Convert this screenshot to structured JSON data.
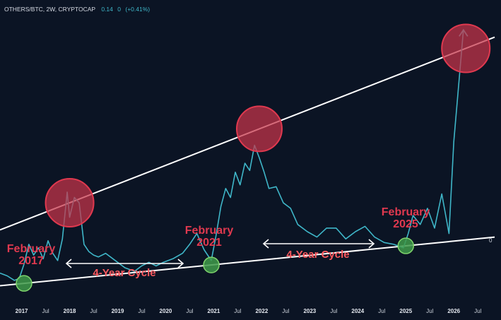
{
  "header": {
    "symbol": "OTHERS/BTC, 2W, CRYPTOCAP",
    "last_value": "0.14",
    "change": "0",
    "change_pct": "(+0.41%)"
  },
  "y_axis_label": "0",
  "colors": {
    "background": "#0b1424",
    "price_line": "#3fb6c8",
    "trendlines": "#ffffff",
    "top_markers": "#c8354a",
    "bottom_markers": "#3f9a4a",
    "callout_text": "#e0394f"
  },
  "callouts": [
    {
      "line1": "February",
      "line2": "2017"
    },
    {
      "line1": "February",
      "line2": "2021"
    },
    {
      "line1": "February",
      "line2": "2025"
    }
  ],
  "cycle_labels": [
    "4-Year Cycle",
    "4-Year Cycle"
  ],
  "chart_data": {
    "type": "line",
    "title": "OTHERS/BTC, 2W, CRYPTOCAP",
    "x_ticks": [
      "2017",
      "Jul",
      "2018",
      "Jul",
      "2019",
      "Jul",
      "2020",
      "Jul",
      "2021",
      "Jul",
      "2022",
      "Jul",
      "2023",
      "Jul",
      "2024",
      "Jul",
      "2025",
      "Jul",
      "2026",
      "Jul"
    ],
    "series": [
      {
        "name": "OTHERS/BTC",
        "x": [
          2016.6,
          2016.75,
          2016.9,
          2017.0,
          2017.1,
          2017.2,
          2017.3,
          2017.4,
          2017.5,
          2017.6,
          2017.7,
          2017.8,
          2017.9,
          2018.0,
          2018.05,
          2018.15,
          2018.25,
          2018.35,
          2018.45,
          2018.55,
          2018.65,
          2018.8,
          2019.0,
          2019.2,
          2019.4,
          2019.55,
          2019.7,
          2019.85,
          2020.0,
          2020.2,
          2020.4,
          2020.55,
          2020.7,
          2020.85,
          2021.0,
          2021.1,
          2021.2,
          2021.3,
          2021.4,
          2021.5,
          2021.6,
          2021.7,
          2021.8,
          2021.9,
          2022.0,
          2022.1,
          2022.2,
          2022.35,
          2022.5,
          2022.65,
          2022.8,
          2023.0,
          2023.2,
          2023.4,
          2023.6,
          2023.8,
          2024.0,
          2024.2,
          2024.4,
          2024.6,
          2024.8,
          2025.0,
          2025.1,
          2025.2,
          2025.35,
          2025.5,
          2025.65,
          2025.8,
          2025.95,
          2026.05,
          2026.25
        ],
        "values": [
          0.7,
          0.55,
          0.3,
          0.4,
          1.2,
          2.3,
          1.7,
          2.1,
          1.5,
          2.5,
          1.8,
          1.4,
          2.6,
          5.2,
          3.8,
          4.9,
          4.6,
          2.3,
          1.9,
          1.7,
          1.6,
          1.8,
          1.4,
          1.0,
          0.8,
          1.1,
          1.3,
          1.1,
          1.3,
          1.5,
          1.8,
          2.3,
          2.9,
          2.0,
          1.4,
          2.8,
          4.4,
          5.4,
          4.9,
          6.3,
          5.6,
          6.8,
          6.4,
          7.8,
          7.1,
          6.3,
          5.4,
          5.5,
          4.6,
          4.3,
          3.4,
          3.0,
          2.7,
          3.2,
          3.2,
          2.6,
          3.0,
          3.3,
          2.7,
          2.4,
          2.3,
          2.1,
          2.9,
          3.9,
          3.4,
          4.3,
          3.2,
          5.1,
          2.9,
          8.0,
          14.2
        ]
      }
    ],
    "overlays": {
      "upper_trendline": {
        "from": [
          2016.6,
          3.1
        ],
        "to": [
          2026.9,
          13.8
        ]
      },
      "lower_trendline": {
        "from": [
          2016.6,
          0.0
        ],
        "to": [
          2026.9,
          2.7
        ]
      },
      "top_markers_x": [
        2018.05,
        2022.0,
        2026.3
      ],
      "bottom_markers_x": [
        2017.1,
        2021.0,
        2025.05
      ]
    },
    "xlim": [
      2016.6,
      2026.9
    ],
    "ylim": [
      -1,
      15
    ],
    "grid": false,
    "legend": "none"
  }
}
